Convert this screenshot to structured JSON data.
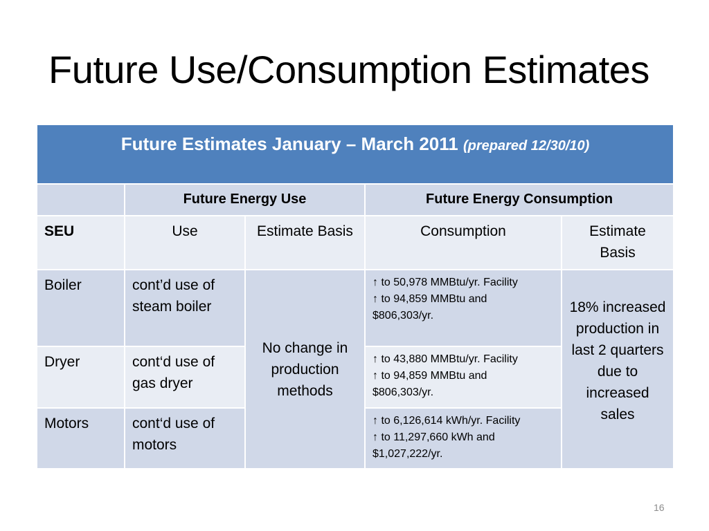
{
  "title": "Future Use/Consumption Estimates",
  "table": {
    "header_main": "Future Estimates January – March 2011",
    "header_sub": "(prepared 12/30/10)",
    "group_use": "Future Energy Use",
    "group_consumption": "Future Energy Consumption",
    "col_seu": "SEU",
    "col_use": "Use",
    "col_estimate_basis": "Estimate Basis",
    "col_consumption": "Consumption",
    "col_estimate_basis_2": "Estimate Basis",
    "rows": [
      {
        "seu": "Boiler",
        "use": "cont’d use of steam boiler",
        "consumption_line1": "↑ to 50,978 MMBtu/yr. Facility",
        "consumption_line2": "↑ to 94,859 MMBtu and",
        "consumption_line3": "$806,303/yr."
      },
      {
        "seu": "Dryer",
        "use": "cont‘d use of gas dryer",
        "consumption_line1": "↑ to 43,880 MMBtu/yr. Facility",
        "consumption_line2": "↑ to 94,859 MMBtu and",
        "consumption_line3": "$806,303/yr."
      },
      {
        "seu": "Motors",
        "use": "cont‘d use of motors",
        "consumption_line1": "↑ to 6,126,614 kWh/yr. Facility",
        "consumption_line2": "↑ to 11,297,660 kWh and",
        "consumption_line3": "$1,027,222/yr."
      }
    ],
    "use_basis_merged": "No change in production methods",
    "consumption_basis_merged": "18% increased production in last 2 quarters due to increased sales"
  },
  "page_number": "16"
}
